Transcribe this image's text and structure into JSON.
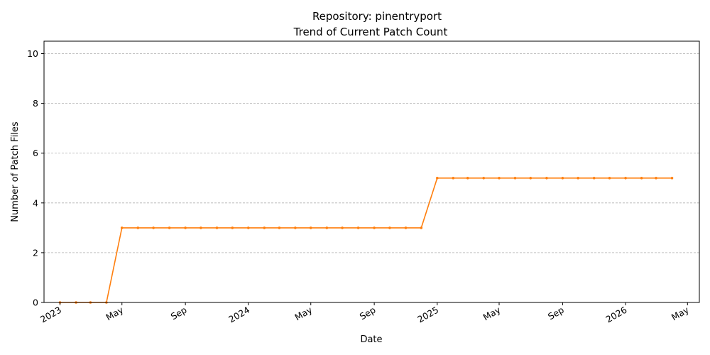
{
  "chart_data": {
    "type": "line",
    "title": "Repository: pinentryport",
    "subtitle": "Trend of Current Patch Count",
    "xlabel": "Date",
    "ylabel": "Number of Patch Files",
    "ylim": [
      0,
      10.5
    ],
    "xlim": [
      "2022-12-01",
      "2026-05-24"
    ],
    "yticks": [
      0,
      2,
      4,
      6,
      8,
      10
    ],
    "xticks": [
      {
        "date": "2023-01-01",
        "label": "2023"
      },
      {
        "date": "2023-05-01",
        "label": "May"
      },
      {
        "date": "2023-09-01",
        "label": "Sep"
      },
      {
        "date": "2024-01-01",
        "label": "2024"
      },
      {
        "date": "2024-05-01",
        "label": "May"
      },
      {
        "date": "2024-09-01",
        "label": "Sep"
      },
      {
        "date": "2025-01-01",
        "label": "2025"
      },
      {
        "date": "2025-05-01",
        "label": "May"
      },
      {
        "date": "2025-09-01",
        "label": "Sep"
      },
      {
        "date": "2026-01-01",
        "label": "2026"
      },
      {
        "date": "2026-05-01",
        "label": "May"
      }
    ],
    "grid": "y-dashed",
    "color": "#ff7f0e",
    "series": [
      {
        "x": [
          "2023-01-01",
          "2023-02-01",
          "2023-03-01",
          "2023-04-01",
          "2023-05-01",
          "2023-06-01",
          "2023-07-01",
          "2023-08-01",
          "2023-09-01",
          "2023-10-01",
          "2023-11-01",
          "2023-12-01",
          "2024-01-01",
          "2024-02-01",
          "2024-03-01",
          "2024-04-01",
          "2024-05-01",
          "2024-06-01",
          "2024-07-01",
          "2024-08-01",
          "2024-09-01",
          "2024-10-01",
          "2024-11-01",
          "2024-12-01",
          "2025-01-01",
          "2025-02-01",
          "2025-03-01",
          "2025-04-01",
          "2025-05-01",
          "2025-06-01",
          "2025-07-01",
          "2025-08-01",
          "2025-09-01",
          "2025-10-01",
          "2025-11-01",
          "2025-12-01",
          "2026-01-01",
          "2026-02-01",
          "2026-03-01",
          "2026-04-01"
        ],
        "y": [
          0,
          0,
          0,
          0,
          3,
          3,
          3,
          3,
          3,
          3,
          3,
          3,
          3,
          3,
          3,
          3,
          3,
          3,
          3,
          3,
          3,
          3,
          3,
          3,
          5,
          5,
          5,
          5,
          5,
          5,
          5,
          5,
          5,
          5,
          5,
          5,
          5,
          5,
          5,
          5
        ]
      }
    ]
  }
}
